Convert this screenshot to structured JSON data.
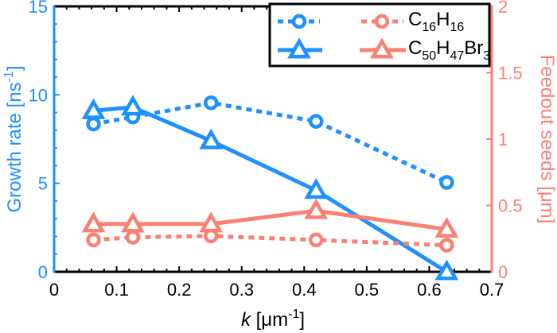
{
  "chart_data": {
    "type": "line",
    "title": "",
    "xlabel": {
      "italic": "k",
      "rest": " [μm",
      "sup": "-1",
      "close": "]"
    },
    "ylabel_left": {
      "text": "Growth rate [ns",
      "sup": "-1",
      "close": "]"
    },
    "ylabel_right": "Feedout seeds [μm]",
    "xlim": [
      0,
      0.7
    ],
    "ylim_left": [
      0,
      15
    ],
    "ylim_right": [
      0,
      2
    ],
    "x_ticks": [
      "0",
      "0.1",
      "0.2",
      "0.3",
      "0.4",
      "0.5",
      "0.6",
      "0.7"
    ],
    "x_tick_values": [
      0,
      0.1,
      0.2,
      0.3,
      0.4,
      0.5,
      0.6,
      0.7
    ],
    "y_left_ticks": [
      "0",
      "5",
      "10",
      "15"
    ],
    "y_left_tick_values": [
      0,
      5,
      10,
      15
    ],
    "y_right_ticks": [
      "0",
      "0.5",
      "1",
      "1.5",
      "2"
    ],
    "y_right_tick_values": [
      0,
      0.5,
      1,
      1.5,
      2
    ],
    "grid": false,
    "legend_position": "top-right",
    "colors": {
      "growth": "#1E90FF",
      "feedout": "#FA8072",
      "frame": "#000000"
    },
    "x": [
      0.063,
      0.126,
      0.251,
      0.419,
      0.628
    ],
    "series": [
      {
        "name": "Growth rate C16H16",
        "axis": "left",
        "material": "C16H16",
        "quantity": "growth",
        "marker": "circle",
        "linestyle": "dotted",
        "values": [
          8.35,
          8.75,
          9.55,
          8.5,
          5.05
        ]
      },
      {
        "name": "Growth rate C50H47Br3",
        "axis": "left",
        "material": "C50H47Br3",
        "quantity": "growth",
        "marker": "triangle",
        "linestyle": "solid",
        "values": [
          9.1,
          9.3,
          7.4,
          4.6,
          0.0
        ]
      },
      {
        "name": "Feedout seeds C16H16",
        "axis": "right",
        "material": "C16H16",
        "quantity": "feedout",
        "marker": "circle",
        "linestyle": "dotted",
        "values": [
          0.24,
          0.26,
          0.27,
          0.24,
          0.2
        ]
      },
      {
        "name": "Feedout seeds C50H47Br3",
        "axis": "right",
        "material": "C50H47Br3",
        "quantity": "feedout",
        "marker": "triangle",
        "linestyle": "solid",
        "values": [
          0.36,
          0.36,
          0.36,
          0.46,
          0.32
        ]
      }
    ],
    "legend": [
      {
        "label_main1": "C",
        "sub1": "16",
        "main2": "H",
        "sub2": "16",
        "main3": "",
        "sub3": ""
      },
      {
        "label_main1": "C",
        "sub1": "50",
        "main2": "H",
        "sub2": "47",
        "main3": "Br",
        "sub3": "3"
      }
    ]
  }
}
